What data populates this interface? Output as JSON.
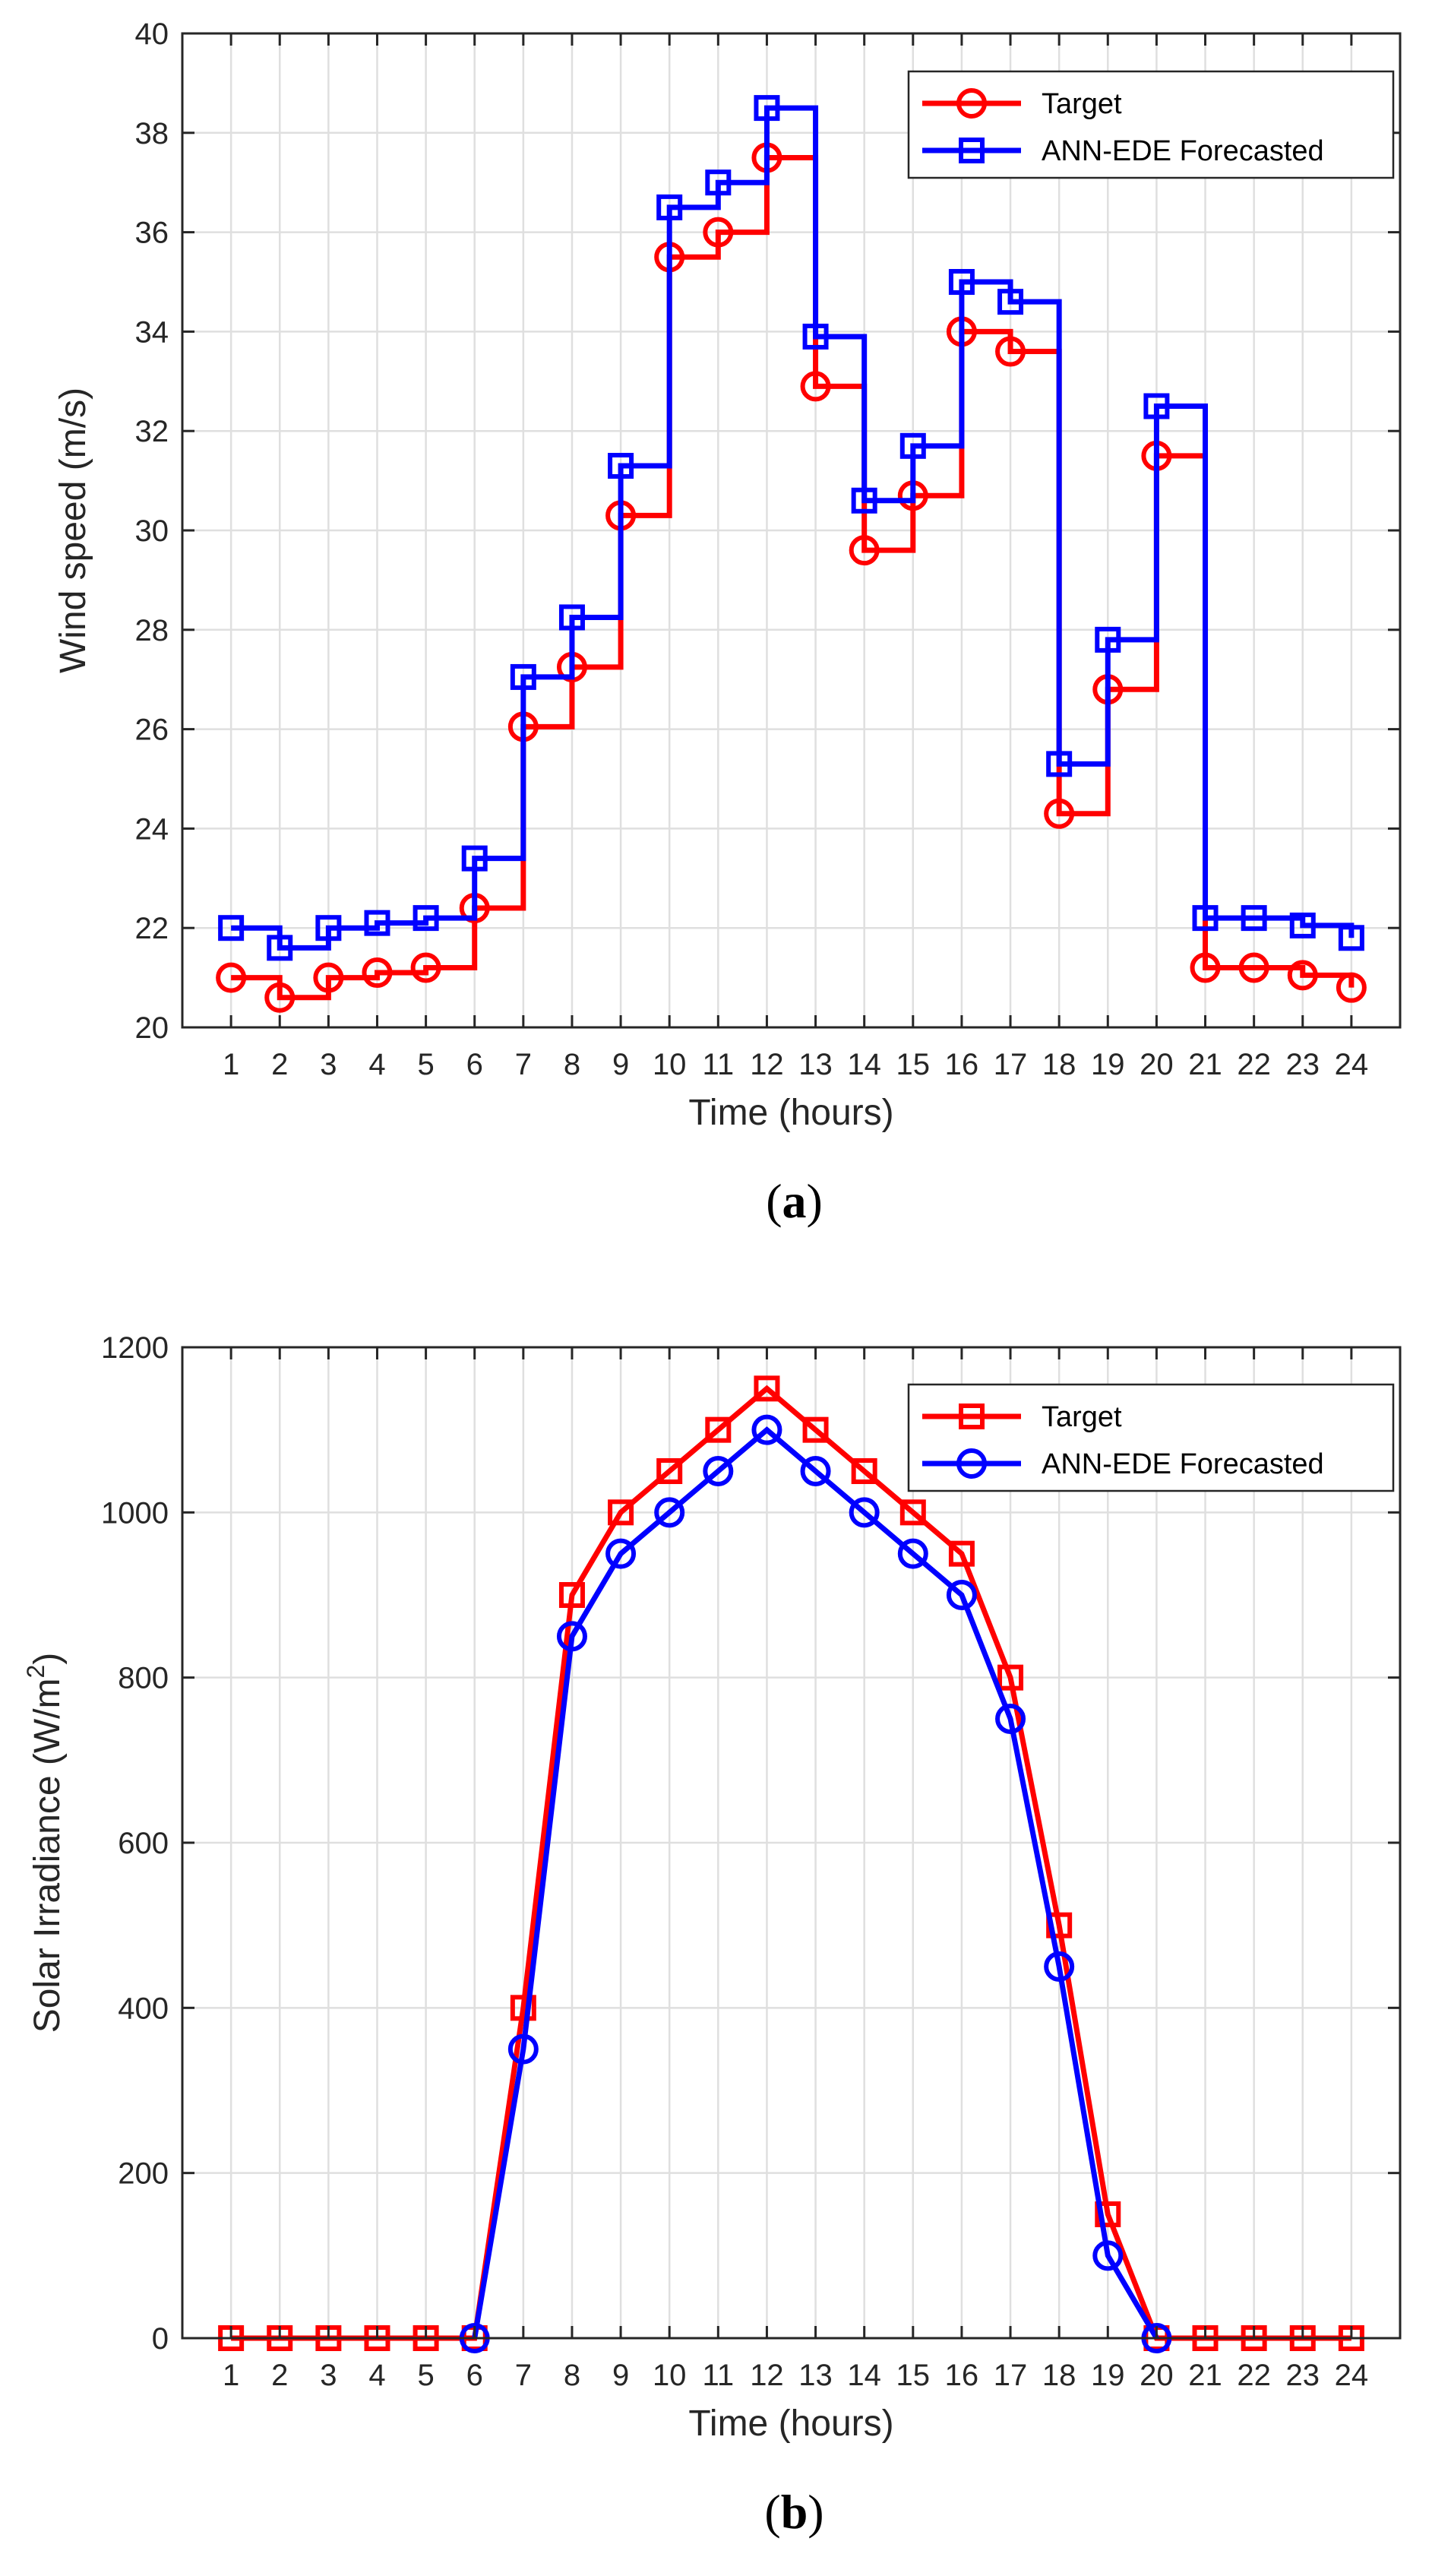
{
  "chart_data": [
    {
      "type": "line",
      "panel_label": "a",
      "xlabel": "Time (hours)",
      "ylabel": "Wind speed (m/s)",
      "xlim": [
        0,
        25
      ],
      "ylim": [
        20,
        40
      ],
      "x": [
        1,
        2,
        3,
        4,
        5,
        6,
        7,
        8,
        9,
        10,
        11,
        12,
        13,
        14,
        15,
        16,
        17,
        18,
        19,
        20,
        21,
        22,
        23,
        24
      ],
      "xticks": [
        1,
        2,
        3,
        4,
        5,
        6,
        7,
        8,
        9,
        10,
        11,
        12,
        13,
        14,
        15,
        16,
        17,
        18,
        19,
        20,
        21,
        22,
        23,
        24
      ],
      "yticks": [
        20,
        22,
        24,
        26,
        28,
        30,
        32,
        34,
        36,
        38,
        40
      ],
      "grid": true,
      "legend_position": "top-right",
      "series": [
        {
          "name": "Target",
          "color": "#ff0000",
          "marker": "circle",
          "style": "stairs",
          "values": [
            21.0,
            20.6,
            21.0,
            21.1,
            21.2,
            22.4,
            26.05,
            27.25,
            30.3,
            35.5,
            36.0,
            37.5,
            32.9,
            29.6,
            30.7,
            34.0,
            33.6,
            24.3,
            26.8,
            31.5,
            21.2,
            21.2,
            21.05,
            20.8
          ]
        },
        {
          "name": "ANN-EDE Forecasted",
          "color": "#0000ff",
          "marker": "square",
          "style": "stairs",
          "values": [
            22.0,
            21.6,
            22.0,
            22.1,
            22.2,
            23.4,
            27.05,
            28.25,
            31.3,
            36.5,
            37.0,
            38.5,
            33.9,
            30.6,
            31.7,
            35.0,
            34.6,
            25.3,
            27.8,
            32.5,
            22.2,
            22.2,
            22.05,
            21.8
          ]
        }
      ]
    },
    {
      "type": "line",
      "panel_label": "b",
      "xlabel": "Time (hours)",
      "ylabel": "Solar Irradiance (W/m",
      "ylabel_sup": "2",
      "ylabel_end": ")",
      "xlim": [
        0,
        25
      ],
      "ylim": [
        0,
        1200
      ],
      "x": [
        1,
        2,
        3,
        4,
        5,
        6,
        7,
        8,
        9,
        10,
        11,
        12,
        13,
        14,
        15,
        16,
        17,
        18,
        19,
        20,
        21,
        22,
        23,
        24
      ],
      "xticks": [
        1,
        2,
        3,
        4,
        5,
        6,
        7,
        8,
        9,
        10,
        11,
        12,
        13,
        14,
        15,
        16,
        17,
        18,
        19,
        20,
        21,
        22,
        23,
        24
      ],
      "yticks": [
        0,
        200,
        400,
        600,
        800,
        1000,
        1200
      ],
      "grid": true,
      "legend_position": "top-right",
      "series": [
        {
          "name": "Target",
          "color": "#ff0000",
          "marker": "square",
          "style": "line",
          "values": [
            0,
            0,
            0,
            0,
            0,
            0,
            400,
            900,
            1000,
            1050,
            1100,
            1150,
            1100,
            1050,
            1000,
            950,
            800,
            500,
            150,
            0,
            0,
            0,
            0,
            0
          ]
        },
        {
          "name": "ANN-EDE Forecasted",
          "color": "#0000ff",
          "marker": "circle",
          "style": "line",
          "values": [
            null,
            null,
            null,
            null,
            null,
            0,
            350,
            850,
            950,
            1000,
            1050,
            1100,
            1050,
            1000,
            950,
            900,
            750,
            450,
            100,
            0,
            null,
            null,
            null,
            null
          ]
        }
      ]
    }
  ]
}
